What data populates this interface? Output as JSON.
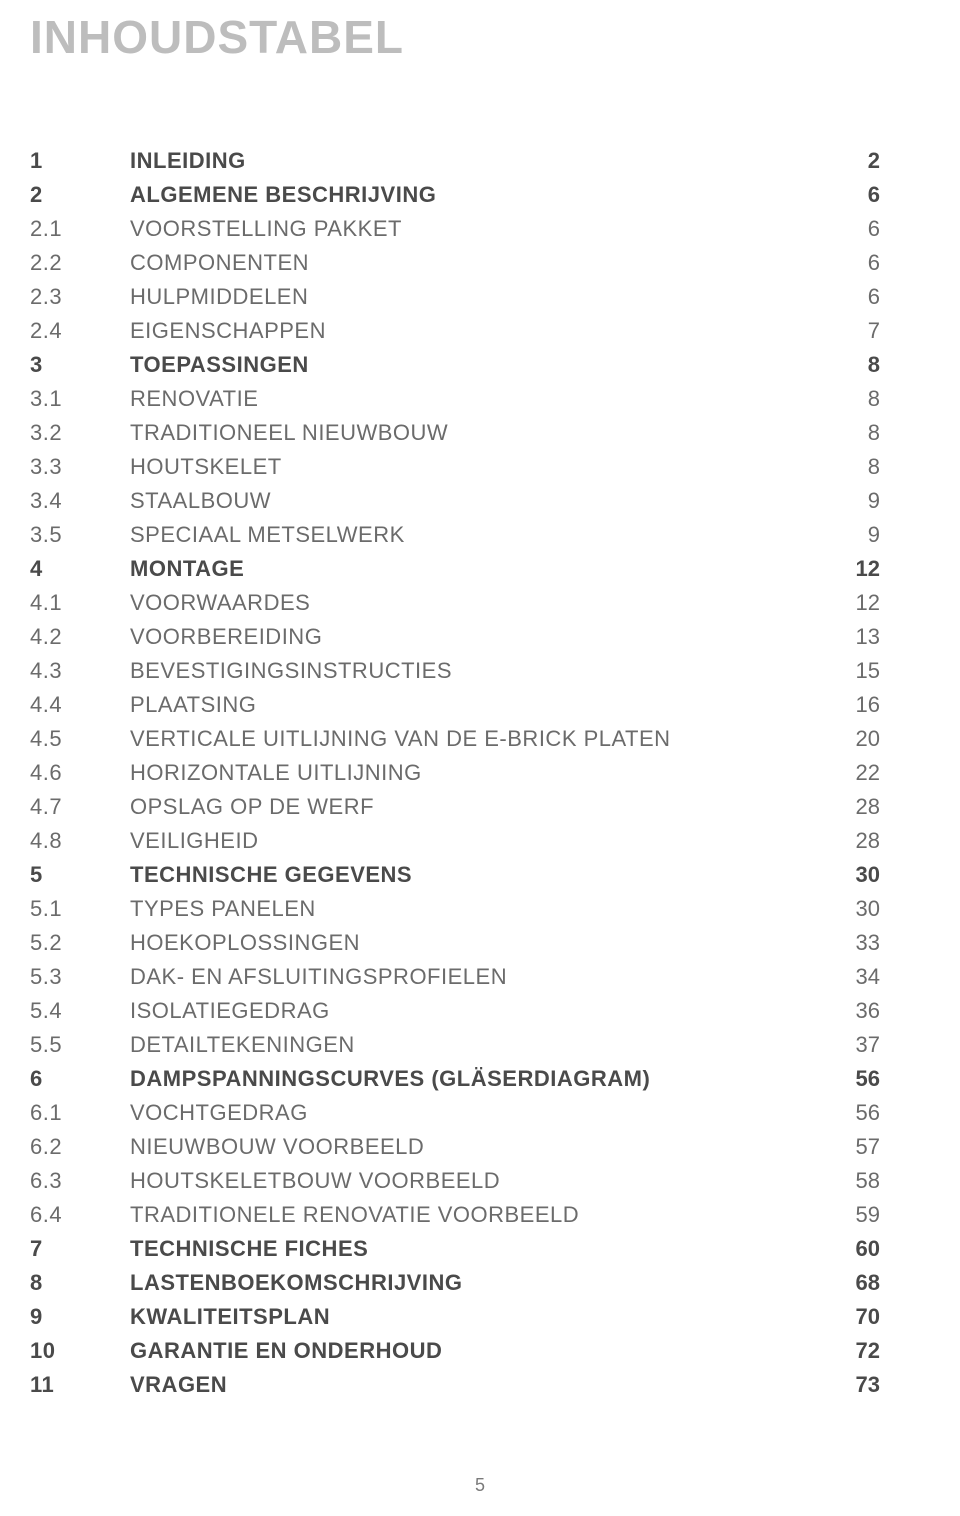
{
  "title": "INHOUDSTABEL",
  "page_number": "5",
  "colors": {
    "title": "#bdbdbd",
    "heading": "#4a4a4a",
    "body": "#6b6b6b",
    "background": "#ffffff"
  },
  "fonts": {
    "title_size_pt": 34,
    "row_size_pt": 16
  },
  "toc": [
    {
      "level": 1,
      "num": "1",
      "title": "INLEIDING",
      "page": "2"
    },
    {
      "level": 1,
      "num": "2",
      "title": "ALGEMENE BESCHRIJVING",
      "page": "6"
    },
    {
      "level": 2,
      "num": "2.1",
      "title": "VOORSTELLING PAKKET",
      "page": "6"
    },
    {
      "level": 2,
      "num": "2.2",
      "title": "COMPONENTEN",
      "page": "6"
    },
    {
      "level": 2,
      "num": "2.3",
      "title": "HULPMIDDELEN",
      "page": "6"
    },
    {
      "level": 2,
      "num": "2.4",
      "title": "EIGENSCHAPPEN",
      "page": "7"
    },
    {
      "level": 1,
      "num": "3",
      "title": "TOEPASSINGEN",
      "page": "8"
    },
    {
      "level": 2,
      "num": "3.1",
      "title": "RENOVATIE",
      "page": "8"
    },
    {
      "level": 2,
      "num": "3.2",
      "title": "TRADITIONEEL NIEUWBOUW",
      "page": "8"
    },
    {
      "level": 2,
      "num": "3.3",
      "title": "HOUTSKELET",
      "page": "8"
    },
    {
      "level": 2,
      "num": "3.4",
      "title": "STAALBOUW",
      "page": "9"
    },
    {
      "level": 2,
      "num": "3.5",
      "title": "SPECIAAL METSELWERK",
      "page": "9"
    },
    {
      "level": 1,
      "num": "4",
      "title": "MONTAGE",
      "page": "12"
    },
    {
      "level": 2,
      "num": "4.1",
      "title": "VOORWAARDES",
      "page": "12"
    },
    {
      "level": 2,
      "num": "4.2",
      "title": "VOORBEREIDING",
      "page": "13"
    },
    {
      "level": 2,
      "num": "4.3",
      "title": "BEVESTIGINGSINSTRUCTIES",
      "page": "15"
    },
    {
      "level": 2,
      "num": "4.4",
      "title": "PLAATSING",
      "page": "16"
    },
    {
      "level": 2,
      "num": "4.5",
      "title": "VERTICALE UITLIJNING VAN DE E-BRICK PLATEN",
      "page": "20"
    },
    {
      "level": 2,
      "num": "4.6",
      "title": "HORIZONTALE UITLIJNING",
      "page": "22"
    },
    {
      "level": 2,
      "num": "4.7",
      "title": "OPSLAG OP DE WERF",
      "page": "28"
    },
    {
      "level": 2,
      "num": "4.8",
      "title": "VEILIGHEID",
      "page": "28"
    },
    {
      "level": 1,
      "num": "5",
      "title": "TECHNISCHE GEGEVENS",
      "page": "30"
    },
    {
      "level": 2,
      "num": "5.1",
      "title": "TYPES PANELEN",
      "page": "30"
    },
    {
      "level": 2,
      "num": "5.2",
      "title": "HOEKOPLOSSINGEN",
      "page": "33"
    },
    {
      "level": 2,
      "num": "5.3",
      "title": "DAK- EN AFSLUITINGSPROFIELEN",
      "page": "34"
    },
    {
      "level": 2,
      "num": "5.4",
      "title": "ISOLATIEGEDRAG",
      "page": "36"
    },
    {
      "level": 2,
      "num": "5.5",
      "title": "DETAILTEKENINGEN",
      "page": "37"
    },
    {
      "level": 1,
      "num": "6",
      "title": "DAMPSPANNINGSCURVES (GLÄSERDIAGRAM)",
      "page": "56"
    },
    {
      "level": 2,
      "num": "6.1",
      "title": "VOCHTGEDRAG",
      "page": "56"
    },
    {
      "level": 2,
      "num": "6.2",
      "title": "NIEUWBOUW VOORBEELD",
      "page": "57"
    },
    {
      "level": 2,
      "num": "6.3",
      "title": "HOUTSKELETBOUW VOORBEELD",
      "page": "58"
    },
    {
      "level": 2,
      "num": "6.4",
      "title": "TRADITIONELE RENOVATIE VOORBEELD",
      "page": "59"
    },
    {
      "level": 1,
      "num": "7",
      "title": "TECHNISCHE FICHES",
      "page": "60"
    },
    {
      "level": 1,
      "num": "8",
      "title": "LASTENBOEKOMSCHRIJVING",
      "page": "68"
    },
    {
      "level": 1,
      "num": "9",
      "title": "KWALITEITSPLAN",
      "page": "70"
    },
    {
      "level": 1,
      "num": "10",
      "title": "GARANTIE EN ONDERHOUD",
      "page": "72"
    },
    {
      "level": 1,
      "num": "11",
      "title": "VRAGEN",
      "page": "73"
    }
  ]
}
